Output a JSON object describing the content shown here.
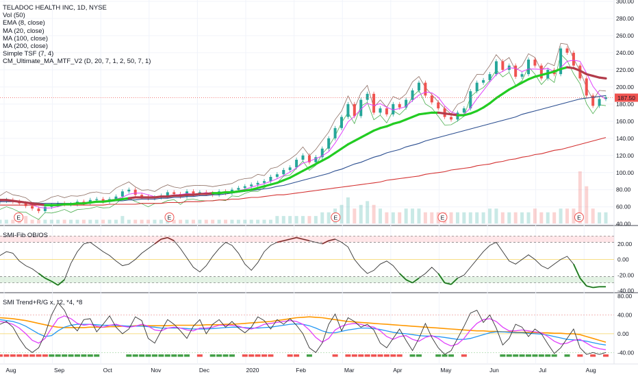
{
  "header": {
    "symbol_line": "TELADOC HEALTH INC, 1D, NYSE",
    "indicators": [
      "Vol (50)",
      "EMA (8, close)",
      "MA (20, close)",
      "MA (100, close)",
      "MA (200, close)",
      "Simple TSF (7, 4)",
      "CM_Ultimate_MA_MTF_V2 (D, 20, 7, 1, 2, 50, 7, 1)"
    ]
  },
  "panels": {
    "fib_title": "SMI-Fib OB/OS",
    "trend_title": "SMI Trend+R/G x, *2, *4, *8"
  },
  "price_marker": "187.50",
  "earnings_marker": "E",
  "colors": {
    "up": "#26a69a",
    "down": "#ef5350",
    "ma20": "#e040fb",
    "ma50": "#22cc22",
    "ma100": "#2a4d8f",
    "ma200": "#d32f2f",
    "ultimate": "#b23b4a",
    "smi": "#333333",
    "orange": "#ff9800",
    "blue": "#2196f3"
  },
  "chart_data": [
    {
      "type": "line",
      "title": "TELADOC HEALTH INC, 1D, NYSE",
      "ylim": [
        40,
        300
      ],
      "y_ticks": [
        "300.00",
        "280.00",
        "260.00",
        "240.00",
        "220.00",
        "200.00",
        "180.00",
        "160.00",
        "140.00",
        "120.00",
        "100.00",
        "80.00",
        "60.00",
        "40.00"
      ],
      "x_ticks": [
        "Aug",
        "Sep",
        "Oct",
        "Nov",
        "Dec",
        "2020",
        "Feb",
        "Mar",
        "Apr",
        "May",
        "Jun",
        "Jul",
        "Aug"
      ],
      "earnings_months": [
        "Jul 31",
        "Oct 30",
        "Feb 26",
        "Apr 29",
        "Jul 29"
      ],
      "last_price": 187.5,
      "series": [
        {
          "name": "Price",
          "values": [
            67,
            68,
            66,
            64,
            61,
            58,
            55,
            60,
            62,
            64,
            63,
            63,
            66,
            64,
            68,
            69,
            66,
            69,
            72,
            78,
            80,
            74,
            72,
            70,
            71,
            73,
            77,
            75,
            72,
            78,
            75,
            77,
            76,
            74,
            78,
            76,
            80,
            82,
            84,
            86,
            88,
            90,
            95,
            98,
            103,
            106,
            115,
            120,
            112,
            118,
            128,
            140,
            152,
            165,
            180,
            166,
            185,
            192,
            170,
            175,
            168,
            180,
            176,
            185,
            196,
            205,
            190,
            182,
            175,
            165,
            162,
            170,
            175,
            195,
            205,
            208,
            215,
            230,
            220,
            225,
            212,
            215,
            232,
            225,
            210,
            220,
            215,
            245,
            240,
            225,
            210,
            190,
            178,
            186,
            188
          ]
        },
        {
          "name": "MA 50",
          "values": [
            68,
            68,
            67,
            66,
            65,
            64,
            63,
            62,
            62,
            62,
            63,
            63,
            64,
            64,
            65,
            66,
            66,
            67,
            68,
            69,
            70,
            71,
            71,
            71,
            71,
            72,
            72,
            73,
            73,
            74,
            74,
            75,
            75,
            76,
            76,
            77,
            77,
            78,
            79,
            80,
            82,
            84,
            86,
            88,
            91,
            94,
            98,
            102,
            106,
            110,
            114,
            118,
            123,
            128,
            133,
            137,
            141,
            145,
            149,
            152,
            154,
            157,
            159,
            162,
            165,
            168,
            169,
            170,
            170,
            169,
            168,
            167,
            167,
            169,
            172,
            176,
            181,
            187,
            192,
            197,
            201,
            205,
            209,
            212,
            214,
            216,
            218,
            221,
            223,
            222,
            219,
            215,
            213,
            211,
            210
          ]
        },
        {
          "name": "MA 100",
          "values": [
            66,
            66,
            66,
            66,
            65,
            65,
            64,
            64,
            64,
            64,
            64,
            64,
            64,
            65,
            65,
            65,
            66,
            66,
            67,
            67,
            68,
            68,
            69,
            69,
            69,
            70,
            70,
            71,
            71,
            72,
            72,
            73,
            73,
            74,
            74,
            75,
            76,
            77,
            78,
            79,
            80,
            81,
            82,
            84,
            85,
            87,
            89,
            91,
            93,
            95,
            97,
            99,
            102,
            104,
            107,
            110,
            112,
            115,
            118,
            120,
            123,
            125,
            127,
            130,
            132,
            134,
            137,
            139,
            141,
            143,
            145,
            147,
            149,
            151,
            153,
            155,
            157,
            159,
            161,
            163,
            165,
            168,
            170,
            172,
            174,
            176,
            178,
            180,
            182,
            184,
            186,
            187,
            188,
            189,
            190
          ]
        },
        {
          "name": "MA 200",
          "values": [
            62,
            62,
            62,
            62,
            62,
            62,
            62,
            62,
            62,
            62,
            62,
            62,
            62,
            62,
            62,
            62,
            62,
            63,
            63,
            63,
            63,
            63,
            64,
            64,
            64,
            64,
            65,
            65,
            65,
            66,
            66,
            66,
            67,
            67,
            68,
            68,
            69,
            69,
            70,
            71,
            71,
            72,
            73,
            74,
            74,
            75,
            76,
            77,
            78,
            79,
            80,
            81,
            82,
            83,
            84,
            85,
            86,
            87,
            88,
            89,
            91,
            92,
            93,
            94,
            95,
            96,
            98,
            99,
            100,
            101,
            103,
            104,
            105,
            106,
            108,
            109,
            110,
            112,
            113,
            115,
            116,
            118,
            119,
            121,
            122,
            124,
            126,
            127,
            129,
            131,
            133,
            135,
            137,
            139,
            141
          ]
        }
      ],
      "volume": [
        1,
        1,
        1,
        1,
        2,
        1,
        1,
        1,
        1,
        1,
        1,
        1,
        1,
        1,
        1,
        1,
        1,
        1,
        1,
        2,
        1,
        1,
        1,
        1,
        1,
        1,
        1,
        1,
        1,
        1,
        1,
        1,
        1,
        1,
        1,
        1,
        1,
        1,
        1,
        1,
        1,
        1,
        1,
        2,
        2,
        2,
        2,
        2,
        2,
        2,
        3,
        3,
        4,
        5,
        7,
        4,
        5,
        6,
        5,
        4,
        3,
        3,
        3,
        4,
        4,
        4,
        3,
        3,
        3,
        3,
        3,
        3,
        3,
        3,
        3,
        3,
        4,
        4,
        3,
        3,
        3,
        3,
        3,
        4,
        3,
        3,
        3,
        4,
        4,
        4,
        14,
        10,
        4,
        3,
        3
      ]
    },
    {
      "type": "line",
      "title": "SMI-Fib OB/OS",
      "ylim": [
        -40,
        40
      ],
      "y_ticks": [
        "20.00",
        "0.00",
        "-20.00",
        "-40.00"
      ],
      "reference_lines": [
        30,
        22,
        0,
        -22,
        -30
      ],
      "series": [
        {
          "name": "SMI",
          "values": [
            5,
            10,
            8,
            -2,
            -8,
            -12,
            -18,
            -24,
            -28,
            -33,
            -26,
            -5,
            10,
            20,
            22,
            16,
            10,
            5,
            -2,
            -8,
            -6,
            0,
            8,
            14,
            20,
            26,
            28,
            24,
            14,
            2,
            -10,
            -16,
            -8,
            4,
            14,
            22,
            18,
            8,
            -6,
            -14,
            -4,
            10,
            18,
            22,
            24,
            26,
            28,
            26,
            24,
            22,
            20,
            24,
            26,
            22,
            16,
            0,
            -10,
            -18,
            -14,
            -6,
            -2,
            -8,
            -18,
            -26,
            -30,
            -24,
            -18,
            -10,
            -18,
            -30,
            -32,
            -24,
            -20,
            -10,
            0,
            10,
            18,
            22,
            10,
            -2,
            -6,
            0,
            6,
            0,
            -8,
            -12,
            -6,
            0,
            4,
            -6,
            -24,
            -34,
            -36,
            -35,
            -35
          ]
        }
      ]
    },
    {
      "type": "line",
      "title": "SMI Trend+R/G x, *2, *4, *8",
      "ylim": [
        -60,
        80
      ],
      "y_ticks": [
        "80.00",
        "40.00",
        "0.00",
        "-40.00"
      ],
      "series": [
        {
          "name": "x",
          "values": [
            20,
            26,
            14,
            -10,
            -30,
            -40,
            -30,
            0,
            40,
            66,
            50,
            20,
            6,
            30,
            32,
            4,
            20,
            38,
            14,
            0,
            10,
            36,
            28,
            -10,
            -20,
            6,
            30,
            20,
            6,
            -10,
            16,
            30,
            0,
            20,
            30,
            14,
            26,
            12,
            2,
            14,
            36,
            28,
            10,
            30,
            20,
            32,
            18,
            0,
            -30,
            -40,
            -20,
            20,
            42,
            6,
            34,
            26,
            14,
            20,
            8,
            -20,
            -30,
            -10,
            10,
            -14,
            -36,
            -10,
            22,
            -8,
            -30,
            -44,
            -36,
            -10,
            16,
            44,
            50,
            24,
            40,
            12,
            -24,
            -10,
            20,
            14,
            -6,
            10,
            0,
            -22,
            -42,
            -30,
            -10,
            10,
            -30,
            -44,
            -40,
            -44,
            -40
          ]
        },
        {
          "name": "*2",
          "values": [
            26,
            24,
            20,
            12,
            0,
            -14,
            -20,
            -10,
            12,
            32,
            38,
            32,
            22,
            18,
            20,
            16,
            14,
            18,
            20,
            16,
            14,
            16,
            20,
            16,
            8,
            6,
            12,
            14,
            12,
            8,
            6,
            12,
            12,
            14,
            18,
            18,
            18,
            16,
            12,
            10,
            14,
            20,
            22,
            24,
            26,
            28,
            26,
            20,
            8,
            -8,
            -18,
            -10,
            8,
            16,
            20,
            22,
            20,
            16,
            14,
            6,
            -6,
            -12,
            -6,
            -4,
            -12,
            -16,
            -8,
            -4,
            -10,
            -20,
            -26,
            -22,
            -10,
            8,
            22,
            30,
            32,
            26,
            14,
            6,
            6,
            8,
            6,
            4,
            2,
            -6,
            -16,
            -22,
            -20,
            -14,
            -12,
            -20,
            -28,
            -32,
            -34
          ]
        },
        {
          "name": "*4",
          "values": [
            30,
            28,
            26,
            22,
            16,
            8,
            0,
            -6,
            -4,
            6,
            14,
            18,
            20,
            20,
            20,
            19,
            18,
            18,
            18,
            17,
            16,
            16,
            16,
            15,
            14,
            12,
            12,
            12,
            12,
            11,
            10,
            10,
            10,
            11,
            12,
            13,
            14,
            14,
            13,
            12,
            12,
            13,
            14,
            16,
            18,
            20,
            21,
            20,
            17,
            12,
            6,
            2,
            2,
            5,
            8,
            10,
            12,
            12,
            11,
            9,
            6,
            3,
            1,
            0,
            -2,
            -4,
            -5,
            -5,
            -6,
            -8,
            -10,
            -12,
            -12,
            -10,
            -6,
            -2,
            2,
            4,
            4,
            3,
            2,
            2,
            1,
            0,
            -1,
            -3,
            -6,
            -9,
            -12,
            -13,
            -14,
            -16,
            -19,
            -22,
            -24
          ]
        },
        {
          "name": "*8",
          "values": [
            34,
            33,
            32,
            30,
            28,
            25,
            22,
            19,
            16,
            14,
            13,
            13,
            13,
            13,
            14,
            14,
            14,
            15,
            15,
            16,
            16,
            17,
            17,
            17,
            17,
            17,
            17,
            18,
            18,
            18,
            18,
            18,
            19,
            19,
            19,
            20,
            20,
            21,
            22,
            23,
            24,
            25,
            26,
            28,
            30,
            32,
            34,
            35,
            36,
            35,
            34,
            32,
            30,
            28,
            26,
            25,
            24,
            23,
            22,
            21,
            20,
            19,
            18,
            17,
            16,
            15,
            14,
            13,
            12,
            11,
            10,
            9,
            8,
            7,
            6,
            6,
            5,
            5,
            4,
            4,
            3,
            3,
            3,
            2,
            2,
            2,
            1,
            1,
            0,
            0,
            -2,
            -6,
            -10,
            -14,
            -18
          ]
        }
      ],
      "trend_signal": [
        -1,
        -1,
        -1,
        -1,
        -1,
        -1,
        -1,
        -1,
        1,
        1,
        1,
        1,
        1,
        1,
        1,
        1,
        0,
        0,
        0,
        0,
        1,
        1,
        1,
        1,
        1,
        1,
        1,
        1,
        1,
        1,
        0,
        -1,
        0,
        1,
        1,
        1,
        1,
        0,
        -1,
        -1,
        -1,
        -1,
        -1,
        0,
        0,
        -1,
        -1,
        0,
        1,
        0,
        0,
        0,
        -1,
        0,
        -1,
        -1,
        -1,
        -1,
        -1,
        -1,
        -1,
        -1,
        -1,
        0,
        1,
        1,
        0,
        0,
        1,
        1,
        1,
        0,
        -1,
        0,
        0,
        0,
        0,
        0,
        1,
        1,
        1,
        1,
        1,
        1,
        1,
        1,
        1,
        0,
        1,
        0,
        -1,
        0,
        -1,
        0,
        -1
      ]
    }
  ]
}
